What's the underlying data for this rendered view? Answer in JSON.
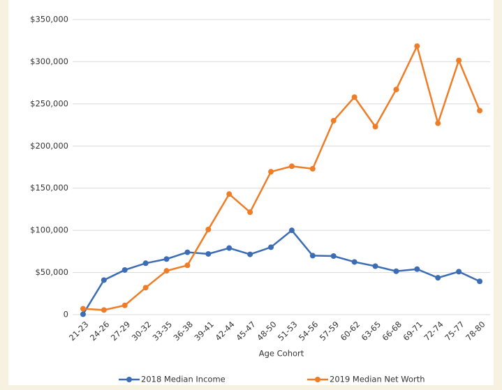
{
  "chart_data": {
    "type": "line",
    "x_label": "Age Cohort",
    "categories": [
      "21-23",
      "24-26",
      "27-29",
      "30-32",
      "33-35",
      "36-38",
      "39-41",
      "42-44",
      "45-47",
      "48-50",
      "51-53",
      "54-56",
      "57-59",
      "60-62",
      "63-65",
      "66-68",
      "69-71",
      "72-74",
      "75-77",
      "78-80"
    ],
    "series": [
      {
        "name": "2018 Median Income",
        "color": "#3b6cb4",
        "values": [
          500,
          41000,
          53000,
          61000,
          66000,
          74000,
          72000,
          79000,
          71500,
          80000,
          100000,
          70000,
          69500,
          62500,
          57500,
          51500,
          54000,
          43700,
          51000,
          39500
        ]
      },
      {
        "name": "2019 Median Net Worth",
        "color": "#ef7d27",
        "values": [
          7000,
          5500,
          11000,
          32000,
          52000,
          58500,
          101000,
          143000,
          121500,
          169500,
          176000,
          173000,
          230000,
          258000,
          223000,
          267000,
          318500,
          227000,
          301500,
          242000
        ]
      }
    ],
    "ylim": [
      0,
      350000
    ],
    "yticks": [
      0,
      {
        "value": 50000,
        "label": "$50,000"
      },
      {
        "value": 100000,
        "label": "$100,000"
      },
      {
        "value": 150000,
        "label": "$150,000"
      },
      {
        "value": 200000,
        "label": "$200,000"
      },
      {
        "value": 250000,
        "label": "$250,000"
      },
      {
        "value": 300000,
        "label": "$300,000"
      },
      {
        "value": 350000,
        "label": "$350,000"
      }
    ],
    "grid": true,
    "legend": "bottom"
  }
}
